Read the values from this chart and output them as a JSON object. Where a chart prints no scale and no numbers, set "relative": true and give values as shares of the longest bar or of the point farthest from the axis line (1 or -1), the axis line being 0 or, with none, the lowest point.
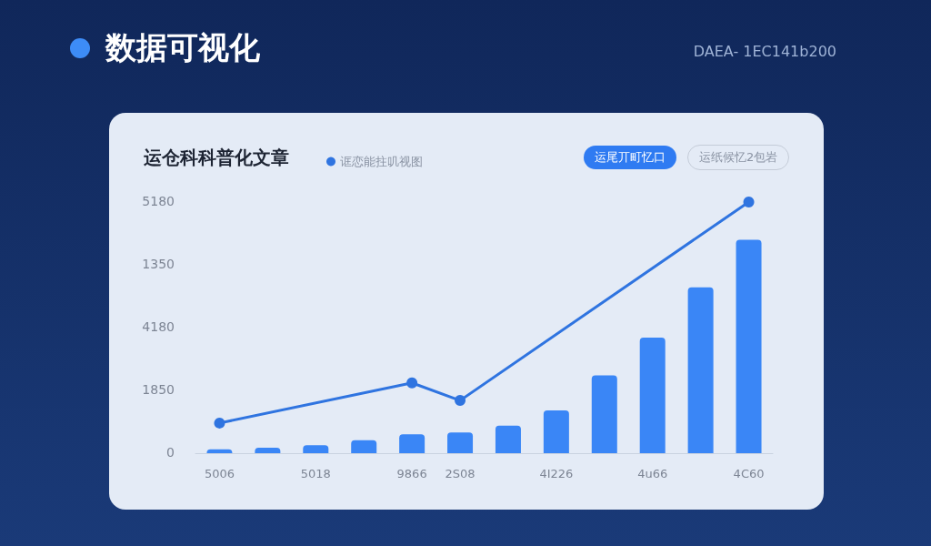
{
  "chart_data": {
    "type": "bar",
    "title": "数据可视化",
    "subtitle": "运仓科科普化文章",
    "annotations": [
      "DAEA- 1EC141b200",
      "运尾丌町忆口",
      "运纸候忆2包岩",
      "5180",
      "1350",
      "4180",
      "1850",
      "0"
    ],
    "categories": [
      "5006",
      null,
      "5018",
      null,
      "9866",
      "2S08",
      null,
      "4I226",
      null,
      "4u66",
      null,
      "4C60"
    ],
    "relative": true,
    "series": [
      {
        "color": "#3a86f6",
        "values": [
          0.015,
          0.022,
          0.032,
          0.052,
          0.075,
          0.082,
          0.11,
          0.17,
          0.31,
          0.46,
          0.66,
          0.85
        ]
      },
      {
        "type": "line",
        "name": "诓恋能拄叽视图",
        "color": "#2f74e0",
        "values": [
          0.12,
          null,
          null,
          null,
          0.28,
          0.21,
          null,
          null,
          null,
          null,
          null,
          1
        ]
      }
    ],
    "legend": "top left",
    "marker": "circle",
    "line_style": "solid"
  }
}
